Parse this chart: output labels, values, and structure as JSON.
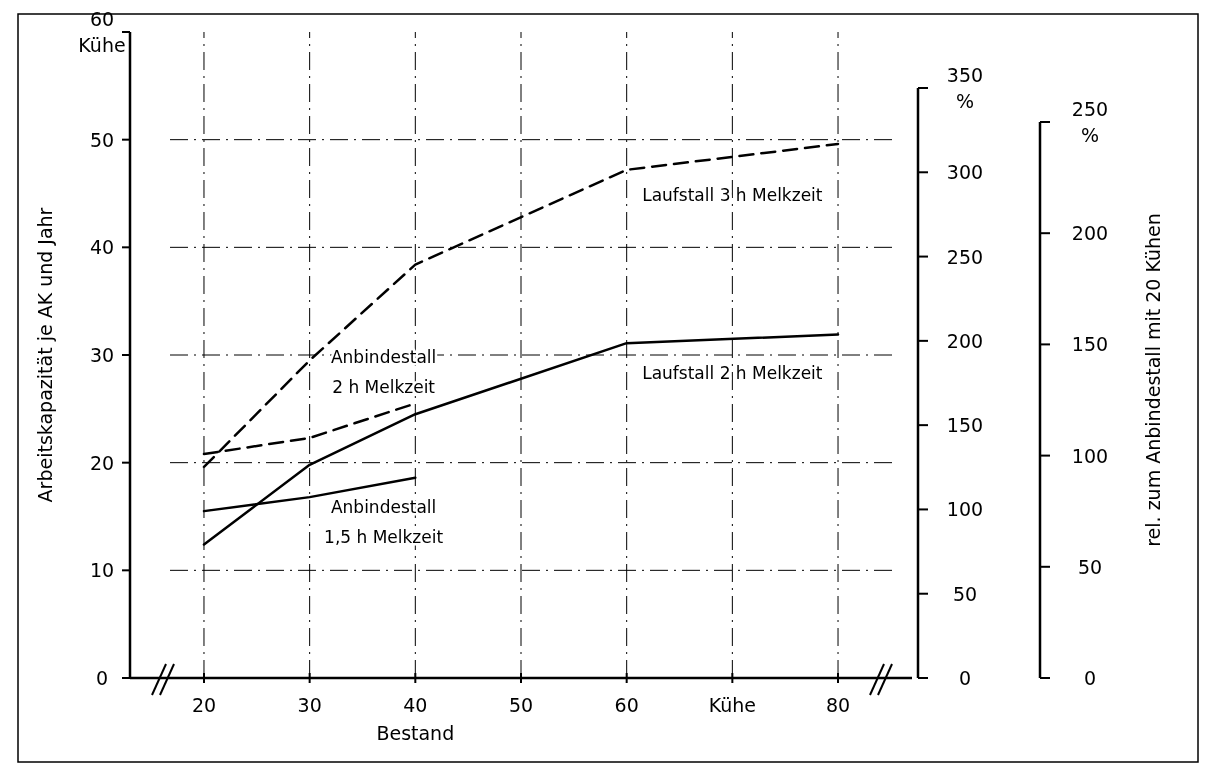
{
  "chart_data": {
    "type": "line",
    "xlabel": "Bestand",
    "ylabel": "Arbeitskapazität je AK und Jahr",
    "y3label": "rel. zum Anbindestall mit 20 Kühen",
    "xlim": [
      13,
      87
    ],
    "xticks": [
      20,
      30,
      40,
      50,
      60,
      {
        "value": 70,
        "label": "Kühe"
      },
      80
    ],
    "ylim": [
      0,
      60
    ],
    "yticks": [
      0,
      10,
      20,
      30,
      40,
      50,
      {
        "value": 60,
        "label": "60\nKühe"
      }
    ],
    "y2lim": [
      0,
      350
    ],
    "y2ticks": [
      0,
      50,
      100,
      150,
      200,
      250,
      300,
      {
        "value": 350,
        "label": "350\n%"
      }
    ],
    "y3lim": [
      0,
      250
    ],
    "y3ticks": [
      0,
      50,
      100,
      150,
      200,
      {
        "value": 250,
        "label": "250\n%"
      }
    ],
    "grid": true,
    "series": [
      {
        "name": "Laufstall 3 h Melkzeit",
        "color": "#000000",
        "line_style": "dashed",
        "x": [
          20,
          30,
          40,
          60,
          80
        ],
        "values": [
          19.6,
          29.5,
          38.4,
          47.2,
          49.6
        ]
      },
      {
        "name": "Laufstall 2 h Melkzeit",
        "color": "#000000",
        "line_style": "solid",
        "x": [
          20,
          30,
          40,
          60,
          80
        ],
        "values": [
          12.4,
          19.8,
          24.5,
          31.1,
          31.9
        ]
      },
      {
        "name": "Anbindestall\n2 h Melkzeit",
        "color": "#000000",
        "line_style": "dashed",
        "x": [
          20,
          30,
          40
        ],
        "values": [
          20.8,
          22.3,
          25.5
        ]
      },
      {
        "name": "Anbindestall\n1,5 h Melkzeit",
        "color": "#000000",
        "line_style": "solid",
        "x": [
          20,
          30,
          40
        ],
        "values": [
          15.5,
          16.8,
          18.6
        ]
      }
    ]
  }
}
